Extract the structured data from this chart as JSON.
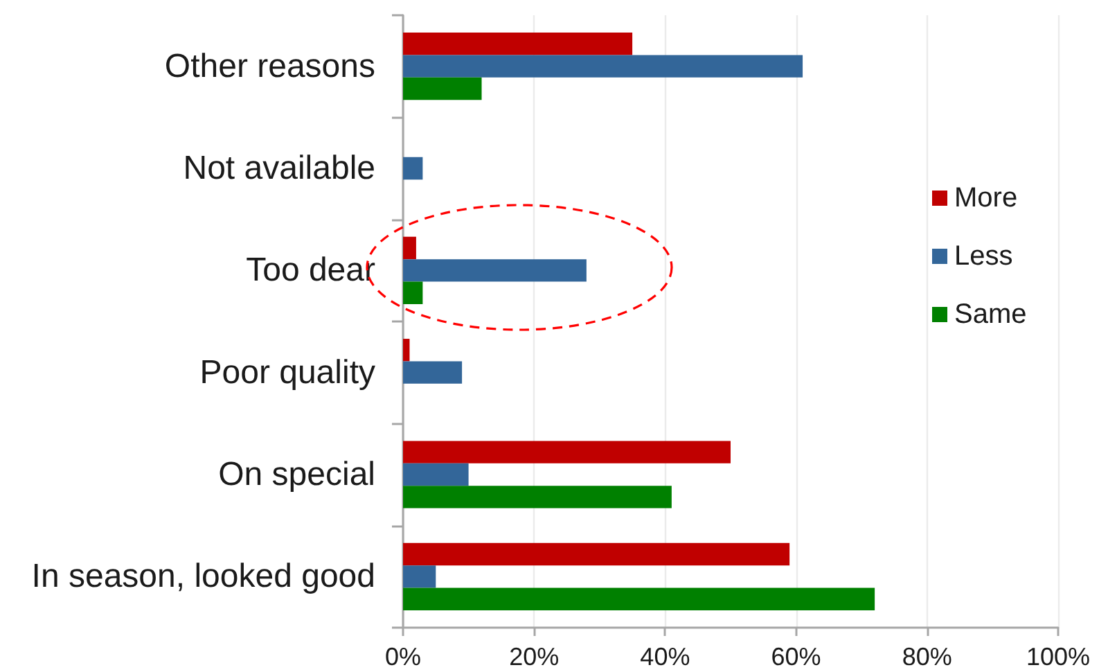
{
  "chart_data": {
    "type": "bar",
    "orientation": "horizontal",
    "categories": [
      "Other reasons",
      "Not available",
      "Too dear",
      "Poor quality",
      "On special",
      "In season, looked good"
    ],
    "series": [
      {
        "name": "More",
        "color": "#c00000",
        "values": [
          35,
          0,
          2,
          1,
          50,
          59
        ]
      },
      {
        "name": "Less",
        "color": "#336699",
        "values": [
          61,
          3,
          28,
          9,
          10,
          5
        ]
      },
      {
        "name": "Same",
        "color": "#008000",
        "values": [
          12,
          0,
          3,
          0,
          41,
          72
        ]
      }
    ],
    "xlim": [
      0,
      100
    ],
    "xticks": [
      {
        "value": 0,
        "label": "0%"
      },
      {
        "value": 20,
        "label": "20%"
      },
      {
        "value": 40,
        "label": "40%"
      },
      {
        "value": 60,
        "label": "60%"
      },
      {
        "value": 80,
        "label": "80%"
      },
      {
        "value": 100,
        "label": "100%"
      }
    ],
    "grid": "x",
    "legend": "right"
  }
}
